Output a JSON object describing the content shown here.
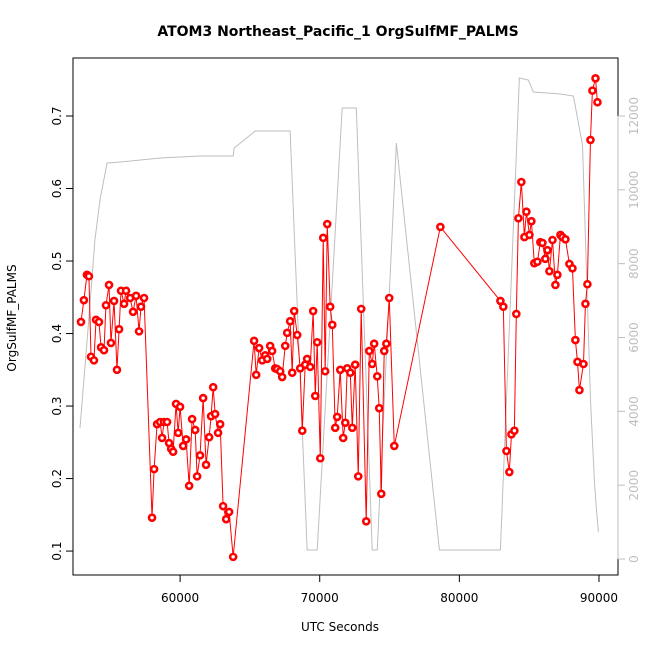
{
  "chart_data": {
    "type": "line",
    "title": "ATOM3 Northeast_Pacific_1 OrgSulfMF_PALMS",
    "xlabel": "UTC Seconds",
    "ylabel": "OrgSulfMF_PALMS",
    "xlim": [
      52330,
      91362
    ],
    "xticks": [
      60000,
      70000,
      80000,
      90000
    ],
    "ylim": [
      0.067,
      0.78
    ],
    "yticks": [
      0.1,
      0.2,
      0.3,
      0.4,
      0.5,
      0.6,
      0.7
    ],
    "y2lim": [
      -433,
      13571
    ],
    "y2ticks": [
      0,
      2000,
      4000,
      6000,
      8000,
      10000,
      12000
    ],
    "y2tick_color": "#bebebe",
    "series": [
      {
        "color": "#bebebe",
        "axis": "y2",
        "marker": "none",
        "x": [
          52830,
          53110,
          53400,
          53900,
          54260,
          54770,
          55700,
          58570,
          61430,
          63800,
          63870,
          65380,
          67880,
          69100,
          69820,
          71610,
          72620,
          73760,
          74120,
          75490,
          78570,
          82940,
          84300,
          84940,
          85300,
          87240,
          88170,
          88820,
          89390,
          89680,
          89820,
          89960
        ],
        "values": [
          3548,
          4848,
          6203,
          8640,
          9724,
          10726,
          10753,
          10861,
          10915,
          10915,
          11132,
          11592,
          11592,
          244,
          244,
          12215,
          12215,
          244,
          244,
          11267,
          244,
          244,
          13028,
          12974,
          12649,
          12595,
          12540,
          11213,
          4307,
          2058,
          1327,
          731
        ]
      },
      {
        "color": "#ff0000",
        "marker": "circle",
        "x": [
          52900,
          53110,
          53330,
          53470,
          53620,
          53830,
          53980,
          54190,
          54340,
          54550,
          54690,
          54910,
          55050,
          55270,
          55480,
          55630,
          55770,
          55990,
          56130,
          56420,
          56630,
          56850,
          57060,
          57200,
          57420,
          57990,
          58140,
          58350,
          58570,
          58710,
          58850,
          59070,
          59210,
          59360,
          59500,
          59710,
          59860,
          60000,
          60220,
          60430,
          60650,
          60860,
          61080,
          61220,
          61430,
          61650,
          61860,
          62080,
          62220,
          62370,
          62510,
          62720,
          62870,
          63080,
          63300,
          63510,
          63800,
          65300,
          65450,
          65660,
          65880,
          66090,
          66240,
          66450,
          66590,
          66810,
          66950,
          67170,
          67310,
          67530,
          67670,
          67880,
          68030,
          68170,
          68390,
          68600,
          68750,
          68960,
          69100,
          69320,
          69530,
          69680,
          69820,
          70040,
          70250,
          70390,
          70540,
          70750,
          70900,
          71110,
          71250,
          71470,
          71680,
          71830,
          71970,
          72190,
          72330,
          72540,
          72760,
          72970,
          73330,
          73550,
          73760,
          73900,
          74120,
          74260,
          74410,
          74620,
          74770,
          74980,
          75340,
          78640,
          82940,
          83150,
          83370,
          83580,
          83730,
          83940,
          84080,
          84230,
          84440,
          84660,
          84800,
          85020,
          85160,
          85370,
          85590,
          85800,
          85950,
          86160,
          86310,
          86450,
          86670,
          86880,
          87020,
          87240,
          87380,
          87600,
          87880,
          88100,
          88310,
          88460,
          88600,
          88890,
          89030,
          89170,
          89390,
          89530,
          89750,
          89890
        ],
        "values": [
          0.416,
          0.446,
          0.481,
          0.479,
          0.368,
          0.363,
          0.419,
          0.416,
          0.381,
          0.377,
          0.439,
          0.467,
          0.387,
          0.445,
          0.35,
          0.406,
          0.459,
          0.441,
          0.459,
          0.449,
          0.43,
          0.452,
          0.403,
          0.437,
          0.449,
          0.146,
          0.213,
          0.275,
          0.278,
          0.256,
          0.278,
          0.278,
          0.249,
          0.241,
          0.237,
          0.303,
          0.263,
          0.299,
          0.245,
          0.254,
          0.19,
          0.282,
          0.267,
          0.203,
          0.232,
          0.311,
          0.219,
          0.257,
          0.286,
          0.326,
          0.289,
          0.263,
          0.275,
          0.162,
          0.144,
          0.154,
          0.092,
          0.39,
          0.343,
          0.38,
          0.363,
          0.37,
          0.365,
          0.383,
          0.376,
          0.352,
          0.351,
          0.348,
          0.34,
          0.383,
          0.401,
          0.417,
          0.346,
          0.431,
          0.398,
          0.352,
          0.266,
          0.357,
          0.365,
          0.354,
          0.431,
          0.314,
          0.388,
          0.228,
          0.532,
          0.348,
          0.551,
          0.437,
          0.412,
          0.27,
          0.285,
          0.35,
          0.256,
          0.277,
          0.352,
          0.346,
          0.27,
          0.357,
          0.203,
          0.434,
          0.141,
          0.376,
          0.358,
          0.386,
          0.341,
          0.297,
          0.179,
          0.376,
          0.386,
          0.449,
          0.245,
          0.547,
          0.445,
          0.437,
          0.238,
          0.209,
          0.261,
          0.266,
          0.427,
          0.559,
          0.609,
          0.533,
          0.568,
          0.536,
          0.555,
          0.497,
          0.499,
          0.526,
          0.525,
          0.503,
          0.515,
          0.486,
          0.529,
          0.467,
          0.481,
          0.536,
          0.533,
          0.53,
          0.496,
          0.49,
          0.391,
          0.361,
          0.322,
          0.358,
          0.441,
          0.468,
          0.667,
          0.735,
          0.752,
          0.719
        ]
      }
    ]
  }
}
